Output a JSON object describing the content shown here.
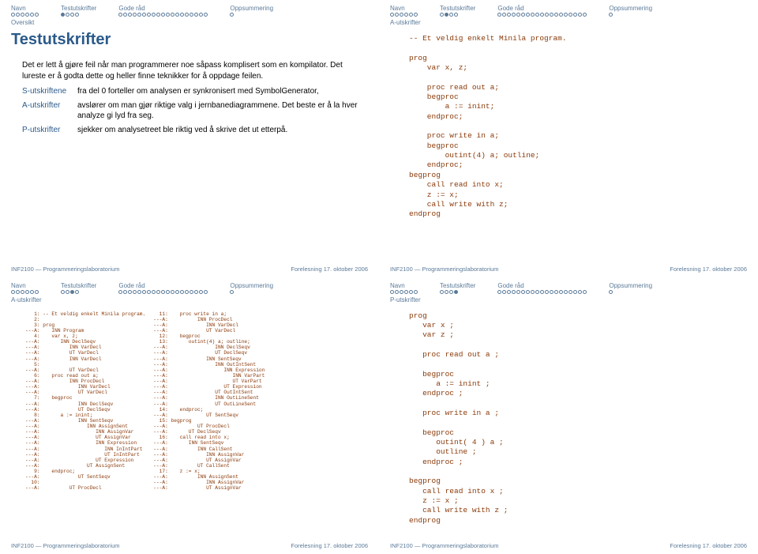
{
  "nav": {
    "sections": [
      {
        "label": "Navn",
        "dotCount": 6
      },
      {
        "label": "Testutskrifter",
        "dotCount": 4
      },
      {
        "label": "Gode råd",
        "dotCount": 19
      },
      {
        "label": "Oppsummering",
        "dotCount": 1
      }
    ]
  },
  "footer": {
    "left": "INF2100 — Programmeringslaboratorium",
    "right": "Forelesning 17. oktober 2006"
  },
  "slides": [
    {
      "navFill": [
        1,
        0
      ],
      "subtitle": "Oversikt",
      "title": "Testutskrifter",
      "paragraph": "Det er lett å gjøre feil når man programmerer noe såpass komplisert som en kompilator. Det lureste er å godta dette og heller finne teknikker for å oppdage feilen.",
      "defs": [
        {
          "term": "S-utskriftene",
          "desc": "fra del 0 forteller om analysen er synkronisert med SymbolGenerator,"
        },
        {
          "term": "A-utskrifter",
          "desc": "avslører om man gjør riktige valg i jernbanediagrammene. Det beste er å la hver analyze gi lyd fra seg."
        },
        {
          "term": "P-utskrifter",
          "desc": "sjekker om analysetreet ble riktig ved å skrive det ut etterpå."
        }
      ],
      "code": null
    },
    {
      "navFill": [
        1,
        1
      ],
      "subtitle": "A-utskrifter",
      "title": null,
      "code": "-- Et veldig enkelt Minila program.\n\nprog\n    var x, z;\n\n    proc read out a;\n    begproc\n        a := inint;\n    endproc;\n\n    proc write in a;\n    begproc\n        outint(4) a; outline;\n    endproc;\nbegprog\n    call read into x;\n    z := x;\n    call write with z;\nendprog"
    },
    {
      "navFill": [
        1,
        2
      ],
      "subtitle": "A-utskrifter",
      "title": null,
      "codeLeft": "   1: -- Et veldig enkelt Minila program.\n   2:\n   3: prog\n---A:    INN Program\n   4:    var x, z;\n---A:       INN DeclSeqv\n---A:          INN VarDecl\n---A:          UT VarDecl\n---A:          INN VarDecl\n   5:\n---A:          UT VarDecl\n   6:    proc read out a;\n---A:          INN ProcDecl\n---A:             INN VarDecl\n---A:             UT VarDecl\n   7:    begproc\n---A:             INN DeclSeqv\n---A:             UT DeclSeqv\n   8:       a := inint;\n---A:             INN SentSeqv\n---A:                INN AssignSent\n---A:                   INN AssignVar\n---A:                   UT AssignVar\n---A:                   INN Expression\n---A:                      INN InIntPart\n---A:                      UT InIntPart\n---A:                   UT Expression\n---A:                UT AssignSent\n   9:    endproc;\n---A:             UT SentSeqv\n  10:\n---A:          UT ProcDecl",
      "codeRight": "  11:    proc write in a;\n---A:          INN ProcDecl\n---A:             INN VarDecl\n---A:             UT VarDecl\n  12:    begproc\n  13:       outint(4) a; outline;\n---A:                INN DeclSeqv\n---A:                UT DeclSeqv\n---A:             INN SentSeqv\n---A:                INN OutIntSent\n---A:                   INN Expression\n---A:                      INN VarPart\n---A:                      UT VarPart\n---A:                   UT Expression\n---A:                UT OutIntSent\n---A:                INN OutLineSent\n---A:                UT OutLineSent\n  14:    endproc;\n---A:             UT SentSeqv\n  15: begprog\n---A:          UT ProcDecl\n---A:       UT DeclSeqv\n  16:    call read into x;\n---A:       INN SentSeqv\n---A:          INN CallSent\n---A:             INN AssignVar\n---A:             UT AssignVar\n---A:          UT CallSent\n  17:    z := x;\n---A:          INN AssignSent\n---A:             INN AssignVar\n---A:             UT AssignVar"
    },
    {
      "navFill": [
        1,
        3
      ],
      "subtitle": "P-utskrifter",
      "title": null,
      "code": "prog\n   var x ;\n   var z ;\n\n   proc read out a ;\n\n   begproc\n      a := inint ;\n   endproc ;\n\n   proc write in a ;\n\n   begproc\n      outint( 4 ) a ;\n      outline ;\n   endproc ;\n\nbegprog\n   call read into x ;\n   z := x ;\n   call write with z ;\nendprog"
    }
  ]
}
